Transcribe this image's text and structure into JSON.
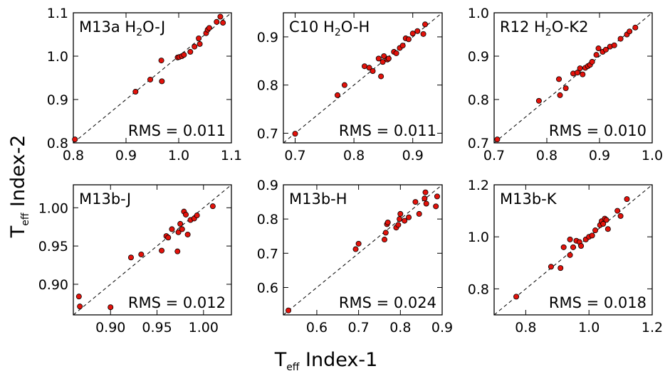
{
  "figure": {
    "x_axis_title": {
      "main": "T",
      "sub": "eff",
      "rest": " Index-1"
    },
    "y_axis_title": {
      "main": "T",
      "sub": "eff",
      "rest": " Index-2"
    },
    "colors": {
      "marker_fill": "#e3120b",
      "marker_edge": "#000000",
      "line": "#000000"
    }
  },
  "chart_data": [
    {
      "type": "scatter",
      "title": {
        "pre": "M13a H",
        "sub": "2",
        "post": "O-J"
      },
      "rms_label": "RMS = 0.011",
      "xlim": [
        0.8,
        1.1
      ],
      "ylim": [
        0.8,
        1.1
      ],
      "xticks": [
        "0.8",
        "0.9",
        "1.0",
        "1.1"
      ],
      "yticks": [
        "0.8",
        "0.9",
        "1.0",
        "1.1"
      ],
      "reference_line": "y = x",
      "x": [
        0.803,
        0.918,
        0.946,
        0.967,
        0.968,
        0.998,
        1.001,
        1.006,
        1.01,
        1.022,
        1.03,
        1.038,
        1.04,
        1.052,
        1.055,
        1.058,
        1.072,
        1.079,
        1.084
      ],
      "y": [
        0.808,
        0.918,
        0.946,
        0.99,
        0.942,
        0.997,
        0.998,
        1.0,
        1.003,
        1.01,
        1.022,
        1.041,
        1.028,
        1.053,
        1.061,
        1.065,
        1.079,
        1.091,
        1.077
      ]
    },
    {
      "type": "scatter",
      "title": {
        "pre": "C10 H",
        "sub": "2",
        "post": "O-H"
      },
      "rms_label": "RMS = 0.011",
      "xlim": [
        0.68,
        0.95
      ],
      "ylim": [
        0.68,
        0.95
      ],
      "xticks": [
        "0.7",
        "0.8",
        "0.9"
      ],
      "yticks": [
        "0.7",
        "0.8",
        "0.9"
      ],
      "reference_line": "y = x",
      "x": [
        0.7,
        0.772,
        0.784,
        0.818,
        0.826,
        0.832,
        0.842,
        0.846,
        0.849,
        0.851,
        0.857,
        0.859,
        0.868,
        0.872,
        0.878,
        0.883,
        0.888,
        0.893,
        0.9,
        0.908,
        0.918,
        0.921
      ],
      "y": [
        0.699,
        0.779,
        0.8,
        0.839,
        0.836,
        0.829,
        0.855,
        0.818,
        0.848,
        0.86,
        0.853,
        0.855,
        0.869,
        0.866,
        0.877,
        0.882,
        0.897,
        0.895,
        0.907,
        0.912,
        0.906,
        0.926
      ]
    },
    {
      "type": "scatter",
      "title": {
        "pre": "R12 H",
        "sub": "2",
        "post": "O-K2"
      },
      "rms_label": "RMS = 0.010",
      "xlim": [
        0.7,
        1.0
      ],
      "ylim": [
        0.7,
        1.0
      ],
      "xticks": [
        "0.7",
        "0.8",
        "0.9",
        "1.0"
      ],
      "yticks": [
        "0.7",
        "0.8",
        "0.9",
        "1.0"
      ],
      "reference_line": "y = x",
      "x": [
        0.706,
        0.785,
        0.823,
        0.825,
        0.836,
        0.85,
        0.858,
        0.863,
        0.868,
        0.873,
        0.878,
        0.882,
        0.886,
        0.894,
        0.898,
        0.906,
        0.912,
        0.92,
        0.928,
        0.94,
        0.952,
        0.957,
        0.968
      ],
      "y": [
        0.708,
        0.797,
        0.847,
        0.81,
        0.826,
        0.86,
        0.862,
        0.872,
        0.858,
        0.873,
        0.877,
        0.88,
        0.887,
        0.903,
        0.918,
        0.91,
        0.915,
        0.922,
        0.925,
        0.94,
        0.95,
        0.957,
        0.966
      ]
    },
    {
      "type": "scatter",
      "title": {
        "pre": "M13b-J",
        "sub": "",
        "post": ""
      },
      "rms_label": "RMS = 0.012",
      "xlim": [
        0.86,
        1.03
      ],
      "ylim": [
        0.86,
        1.03
      ],
      "xticks": [
        "0.90",
        "0.95",
        "1.00"
      ],
      "yticks": [
        "0.90",
        "0.95",
        "1.00"
      ],
      "reference_line": "y = x",
      "x": [
        0.866,
        0.867,
        0.9,
        0.922,
        0.933,
        0.955,
        0.96,
        0.962,
        0.966,
        0.972,
        0.973,
        0.975,
        0.977,
        0.979,
        0.981,
        0.983,
        0.986,
        0.99,
        0.993,
        1.01
      ],
      "y": [
        0.884,
        0.871,
        0.87,
        0.935,
        0.939,
        0.944,
        0.963,
        0.961,
        0.972,
        0.943,
        0.968,
        0.979,
        0.972,
        0.995,
        0.991,
        0.965,
        0.984,
        0.986,
        0.99,
        1.002
      ]
    },
    {
      "type": "scatter",
      "title": {
        "pre": "M13b-H",
        "sub": "",
        "post": ""
      },
      "rms_label": "RMS = 0.024",
      "xlim": [
        0.52,
        0.9
      ],
      "ylim": [
        0.52,
        0.9
      ],
      "xticks": [
        "0.6",
        "0.7",
        "0.8",
        "0.9"
      ],
      "yticks": [
        "0.6",
        "0.7",
        "0.8",
        "0.9"
      ],
      "reference_line": "y = x",
      "x": [
        0.532,
        0.693,
        0.7,
        0.762,
        0.765,
        0.768,
        0.77,
        0.79,
        0.795,
        0.798,
        0.8,
        0.81,
        0.82,
        0.836,
        0.845,
        0.858,
        0.86,
        0.862,
        0.885,
        0.888
      ],
      "y": [
        0.533,
        0.712,
        0.728,
        0.74,
        0.76,
        0.785,
        0.79,
        0.775,
        0.783,
        0.8,
        0.815,
        0.795,
        0.805,
        0.85,
        0.815,
        0.86,
        0.878,
        0.845,
        0.837,
        0.866
      ]
    },
    {
      "type": "scatter",
      "title": {
        "pre": "M13b-K",
        "sub": "",
        "post": ""
      },
      "rms_label": "RMS = 0.018",
      "xlim": [
        0.7,
        1.2
      ],
      "ylim": [
        0.7,
        1.2
      ],
      "xticks": [
        "0.8",
        "1.0",
        "1.2"
      ],
      "yticks": [
        "0.8",
        "1.0",
        "1.2"
      ],
      "reference_line": "y = x",
      "x": [
        0.77,
        0.88,
        0.91,
        0.92,
        0.94,
        0.94,
        0.95,
        0.96,
        0.97,
        0.975,
        0.99,
        1.0,
        1.01,
        1.02,
        1.035,
        1.04,
        1.045,
        1.05,
        1.055,
        1.06,
        1.09,
        1.1,
        1.12
      ],
      "y": [
        0.77,
        0.885,
        0.88,
        0.96,
        0.99,
        0.93,
        0.96,
        0.985,
        0.98,
        0.965,
        0.99,
        1.0,
        1.005,
        1.025,
        1.045,
        1.06,
        1.05,
        1.07,
        1.065,
        1.03,
        1.1,
        1.08,
        1.145
      ]
    }
  ]
}
